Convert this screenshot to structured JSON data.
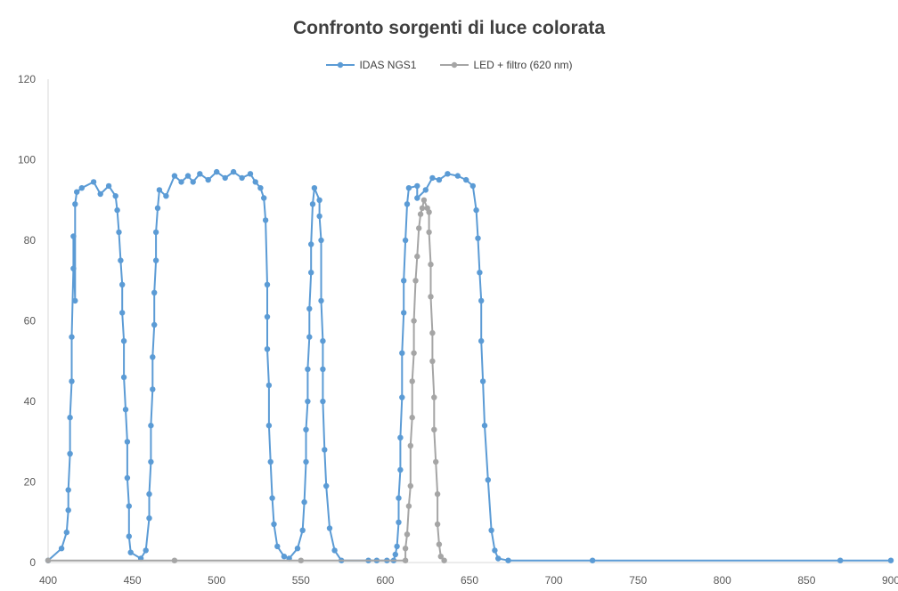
{
  "chart_data": {
    "type": "line",
    "title": "Confronto sorgenti di luce colorata",
    "xlabel": "",
    "ylabel": "",
    "xlim": [
      400,
      900
    ],
    "ylim": [
      0,
      120
    ],
    "x_ticks": [
      "400",
      "450",
      "500",
      "550",
      "600",
      "650",
      "700",
      "750",
      "800",
      "850",
      "900"
    ],
    "y_ticks": [
      "0",
      "20",
      "40",
      "60",
      "80",
      "100",
      "120"
    ],
    "grid": false,
    "legend_position": "top",
    "series": [
      {
        "name": "IDAS NGS1",
        "color": "#5b9bd5",
        "points": [
          [
            400,
            0.5
          ],
          [
            408,
            3.5
          ],
          [
            411,
            7.5
          ],
          [
            412,
            13
          ],
          [
            412,
            18
          ],
          [
            413,
            27
          ],
          [
            413,
            36
          ],
          [
            414,
            45
          ],
          [
            414,
            56
          ],
          [
            415,
            73
          ],
          [
            415,
            81
          ],
          [
            416,
            65
          ],
          [
            416,
            89
          ],
          [
            417,
            92
          ],
          [
            420,
            93
          ],
          [
            427,
            94.5
          ],
          [
            431,
            91.5
          ],
          [
            436,
            93.5
          ],
          [
            440,
            91
          ],
          [
            441,
            87.5
          ],
          [
            442,
            82
          ],
          [
            443,
            75
          ],
          [
            444,
            69
          ],
          [
            444,
            62
          ],
          [
            445,
            55
          ],
          [
            445,
            46
          ],
          [
            446,
            38
          ],
          [
            447,
            30
          ],
          [
            447,
            21
          ],
          [
            448,
            14
          ],
          [
            448,
            6.5
          ],
          [
            449,
            2.5
          ],
          [
            455,
            1
          ],
          [
            458,
            3
          ],
          [
            460,
            11
          ],
          [
            460,
            17
          ],
          [
            461,
            25
          ],
          [
            461,
            34
          ],
          [
            462,
            43
          ],
          [
            462,
            51
          ],
          [
            463,
            59
          ],
          [
            463,
            67
          ],
          [
            464,
            75
          ],
          [
            464,
            82
          ],
          [
            465,
            88
          ],
          [
            466,
            92.5
          ],
          [
            470,
            91
          ],
          [
            475,
            96
          ],
          [
            479,
            94.5
          ],
          [
            483,
            96
          ],
          [
            486,
            94.5
          ],
          [
            490,
            96.5
          ],
          [
            495,
            95
          ],
          [
            500,
            97
          ],
          [
            505,
            95.5
          ],
          [
            510,
            97
          ],
          [
            515,
            95.5
          ],
          [
            520,
            96.5
          ],
          [
            523,
            94.5
          ],
          [
            526,
            93
          ],
          [
            528,
            90.5
          ],
          [
            529,
            85
          ],
          [
            530,
            69
          ],
          [
            530,
            61
          ],
          [
            530,
            53
          ],
          [
            531,
            44
          ],
          [
            531,
            34
          ],
          [
            532,
            25
          ],
          [
            533,
            16
          ],
          [
            534,
            9.5
          ],
          [
            536,
            4
          ],
          [
            540,
            1.5
          ],
          [
            543,
            1
          ],
          [
            548,
            3.5
          ],
          [
            551,
            8
          ],
          [
            552,
            15
          ],
          [
            553,
            25
          ],
          [
            553,
            33
          ],
          [
            554,
            40
          ],
          [
            554,
            48
          ],
          [
            555,
            56
          ],
          [
            555,
            63
          ],
          [
            556,
            72
          ],
          [
            556,
            79
          ],
          [
            557,
            89
          ],
          [
            558,
            93
          ],
          [
            561,
            90
          ],
          [
            561,
            86
          ],
          [
            562,
            80
          ],
          [
            562,
            65
          ],
          [
            563,
            55
          ],
          [
            563,
            48
          ],
          [
            563,
            40
          ],
          [
            564,
            28
          ],
          [
            565,
            19
          ],
          [
            567,
            8.5
          ],
          [
            570,
            3
          ],
          [
            574,
            0.5
          ],
          [
            590,
            0.5
          ],
          [
            595,
            0.5
          ],
          [
            601,
            0.5
          ],
          [
            605,
            0.5
          ],
          [
            606,
            2
          ],
          [
            607,
            4
          ],
          [
            608,
            10
          ],
          [
            608,
            16
          ],
          [
            609,
            23
          ],
          [
            609,
            31
          ],
          [
            610,
            41
          ],
          [
            610,
            52
          ],
          [
            611,
            62
          ],
          [
            611,
            70
          ],
          [
            612,
            80
          ],
          [
            613,
            89
          ],
          [
            614,
            93
          ],
          [
            619,
            93.5
          ],
          [
            619,
            90.5
          ],
          [
            624,
            92.5
          ],
          [
            628,
            95.5
          ],
          [
            632,
            95
          ],
          [
            637,
            96.5
          ],
          [
            643,
            96
          ],
          [
            648,
            95
          ],
          [
            652,
            93.5
          ],
          [
            654,
            87.5
          ],
          [
            655,
            80.5
          ],
          [
            656,
            72
          ],
          [
            657,
            65
          ],
          [
            657,
            55
          ],
          [
            658,
            45
          ],
          [
            659,
            34
          ],
          [
            661,
            20.5
          ],
          [
            663,
            8
          ],
          [
            665,
            3
          ],
          [
            667,
            1
          ],
          [
            673,
            0.5
          ],
          [
            723,
            0.5
          ],
          [
            870,
            0.5
          ],
          [
            900,
            0.5
          ]
        ]
      },
      {
        "name": "LED + filtro (620 nm)",
        "color": "#a5a5a5",
        "points": [
          [
            400,
            0.5
          ],
          [
            475,
            0.5
          ],
          [
            550,
            0.5
          ],
          [
            612,
            0.5
          ],
          [
            612,
            3.5
          ],
          [
            613,
            7
          ],
          [
            614,
            14
          ],
          [
            615,
            19
          ],
          [
            615,
            29
          ],
          [
            616,
            36
          ],
          [
            616,
            45
          ],
          [
            617,
            52
          ],
          [
            617,
            60
          ],
          [
            618,
            70
          ],
          [
            619,
            76
          ],
          [
            620,
            83
          ],
          [
            621,
            86.5
          ],
          [
            622,
            88
          ],
          [
            623,
            90
          ],
          [
            625,
            88
          ],
          [
            626,
            87
          ],
          [
            626,
            82
          ],
          [
            627,
            74
          ],
          [
            627,
            66
          ],
          [
            628,
            57
          ],
          [
            628,
            50
          ],
          [
            629,
            41
          ],
          [
            629,
            33
          ],
          [
            630,
            25
          ],
          [
            631,
            17
          ],
          [
            631,
            9.5
          ],
          [
            632,
            4.5
          ],
          [
            633,
            1.5
          ],
          [
            635,
            0.5
          ]
        ]
      }
    ]
  }
}
